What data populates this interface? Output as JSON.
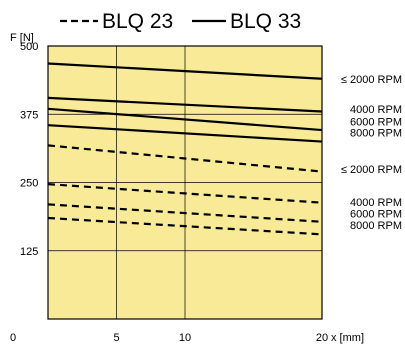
{
  "chart_data": {
    "type": "line",
    "title": "",
    "xlabel": "x [mm]",
    "ylabel": "F [N]",
    "xlim": [
      0,
      20
    ],
    "ylim": [
      0,
      500
    ],
    "x_ticks": [
      0,
      5,
      10,
      20
    ],
    "y_ticks": [
      125,
      250,
      375,
      500
    ],
    "grid": true,
    "background_color": "#f8ea97",
    "legend": {
      "placement": "top",
      "entries": [
        {
          "label": "BLQ 23",
          "style": "dashed"
        },
        {
          "label": "BLQ 33",
          "style": "solid"
        }
      ]
    },
    "series": [
      {
        "model": "BLQ 33",
        "rpm": "≤ 2000 RPM",
        "style": "solid",
        "x": [
          0,
          20
        ],
        "y": [
          468,
          440
        ]
      },
      {
        "model": "BLQ 33",
        "rpm": "4000 RPM",
        "style": "solid",
        "x": [
          0,
          20
        ],
        "y": [
          405,
          380
        ]
      },
      {
        "model": "BLQ 33",
        "rpm": "6000 RPM",
        "style": "solid",
        "x": [
          0,
          20
        ],
        "y": [
          385,
          346
        ]
      },
      {
        "model": "BLQ 33",
        "rpm": "8000 RPM",
        "style": "solid",
        "x": [
          0,
          20
        ],
        "y": [
          355,
          325
        ]
      },
      {
        "model": "BLQ 23",
        "rpm": "≤ 2000 RPM",
        "style": "dashed",
        "x": [
          0,
          20
        ],
        "y": [
          318,
          270
        ]
      },
      {
        "model": "BLQ 23",
        "rpm": "4000 RPM",
        "style": "dashed",
        "x": [
          0,
          20
        ],
        "y": [
          247,
          213
        ]
      },
      {
        "model": "BLQ 23",
        "rpm": "6000 RPM",
        "style": "dashed",
        "x": [
          0,
          20
        ],
        "y": [
          210,
          178
        ]
      },
      {
        "model": "BLQ 23",
        "rpm": "8000 RPM",
        "style": "dashed",
        "x": [
          0,
          20
        ],
        "y": [
          185,
          155
        ]
      }
    ],
    "right_labels": [
      {
        "text": "≤ 2000 RPM",
        "y": 440
      },
      {
        "text": "4000 RPM",
        "y": 385
      },
      {
        "text": "6000 RPM",
        "y": 362
      },
      {
        "text": "8000 RPM",
        "y": 342
      },
      {
        "text": "≤ 2000 RPM",
        "y": 275
      },
      {
        "text": "4000 RPM",
        "y": 214
      },
      {
        "text": "6000 RPM",
        "y": 193
      },
      {
        "text": "8000 RPM",
        "y": 172
      }
    ]
  }
}
